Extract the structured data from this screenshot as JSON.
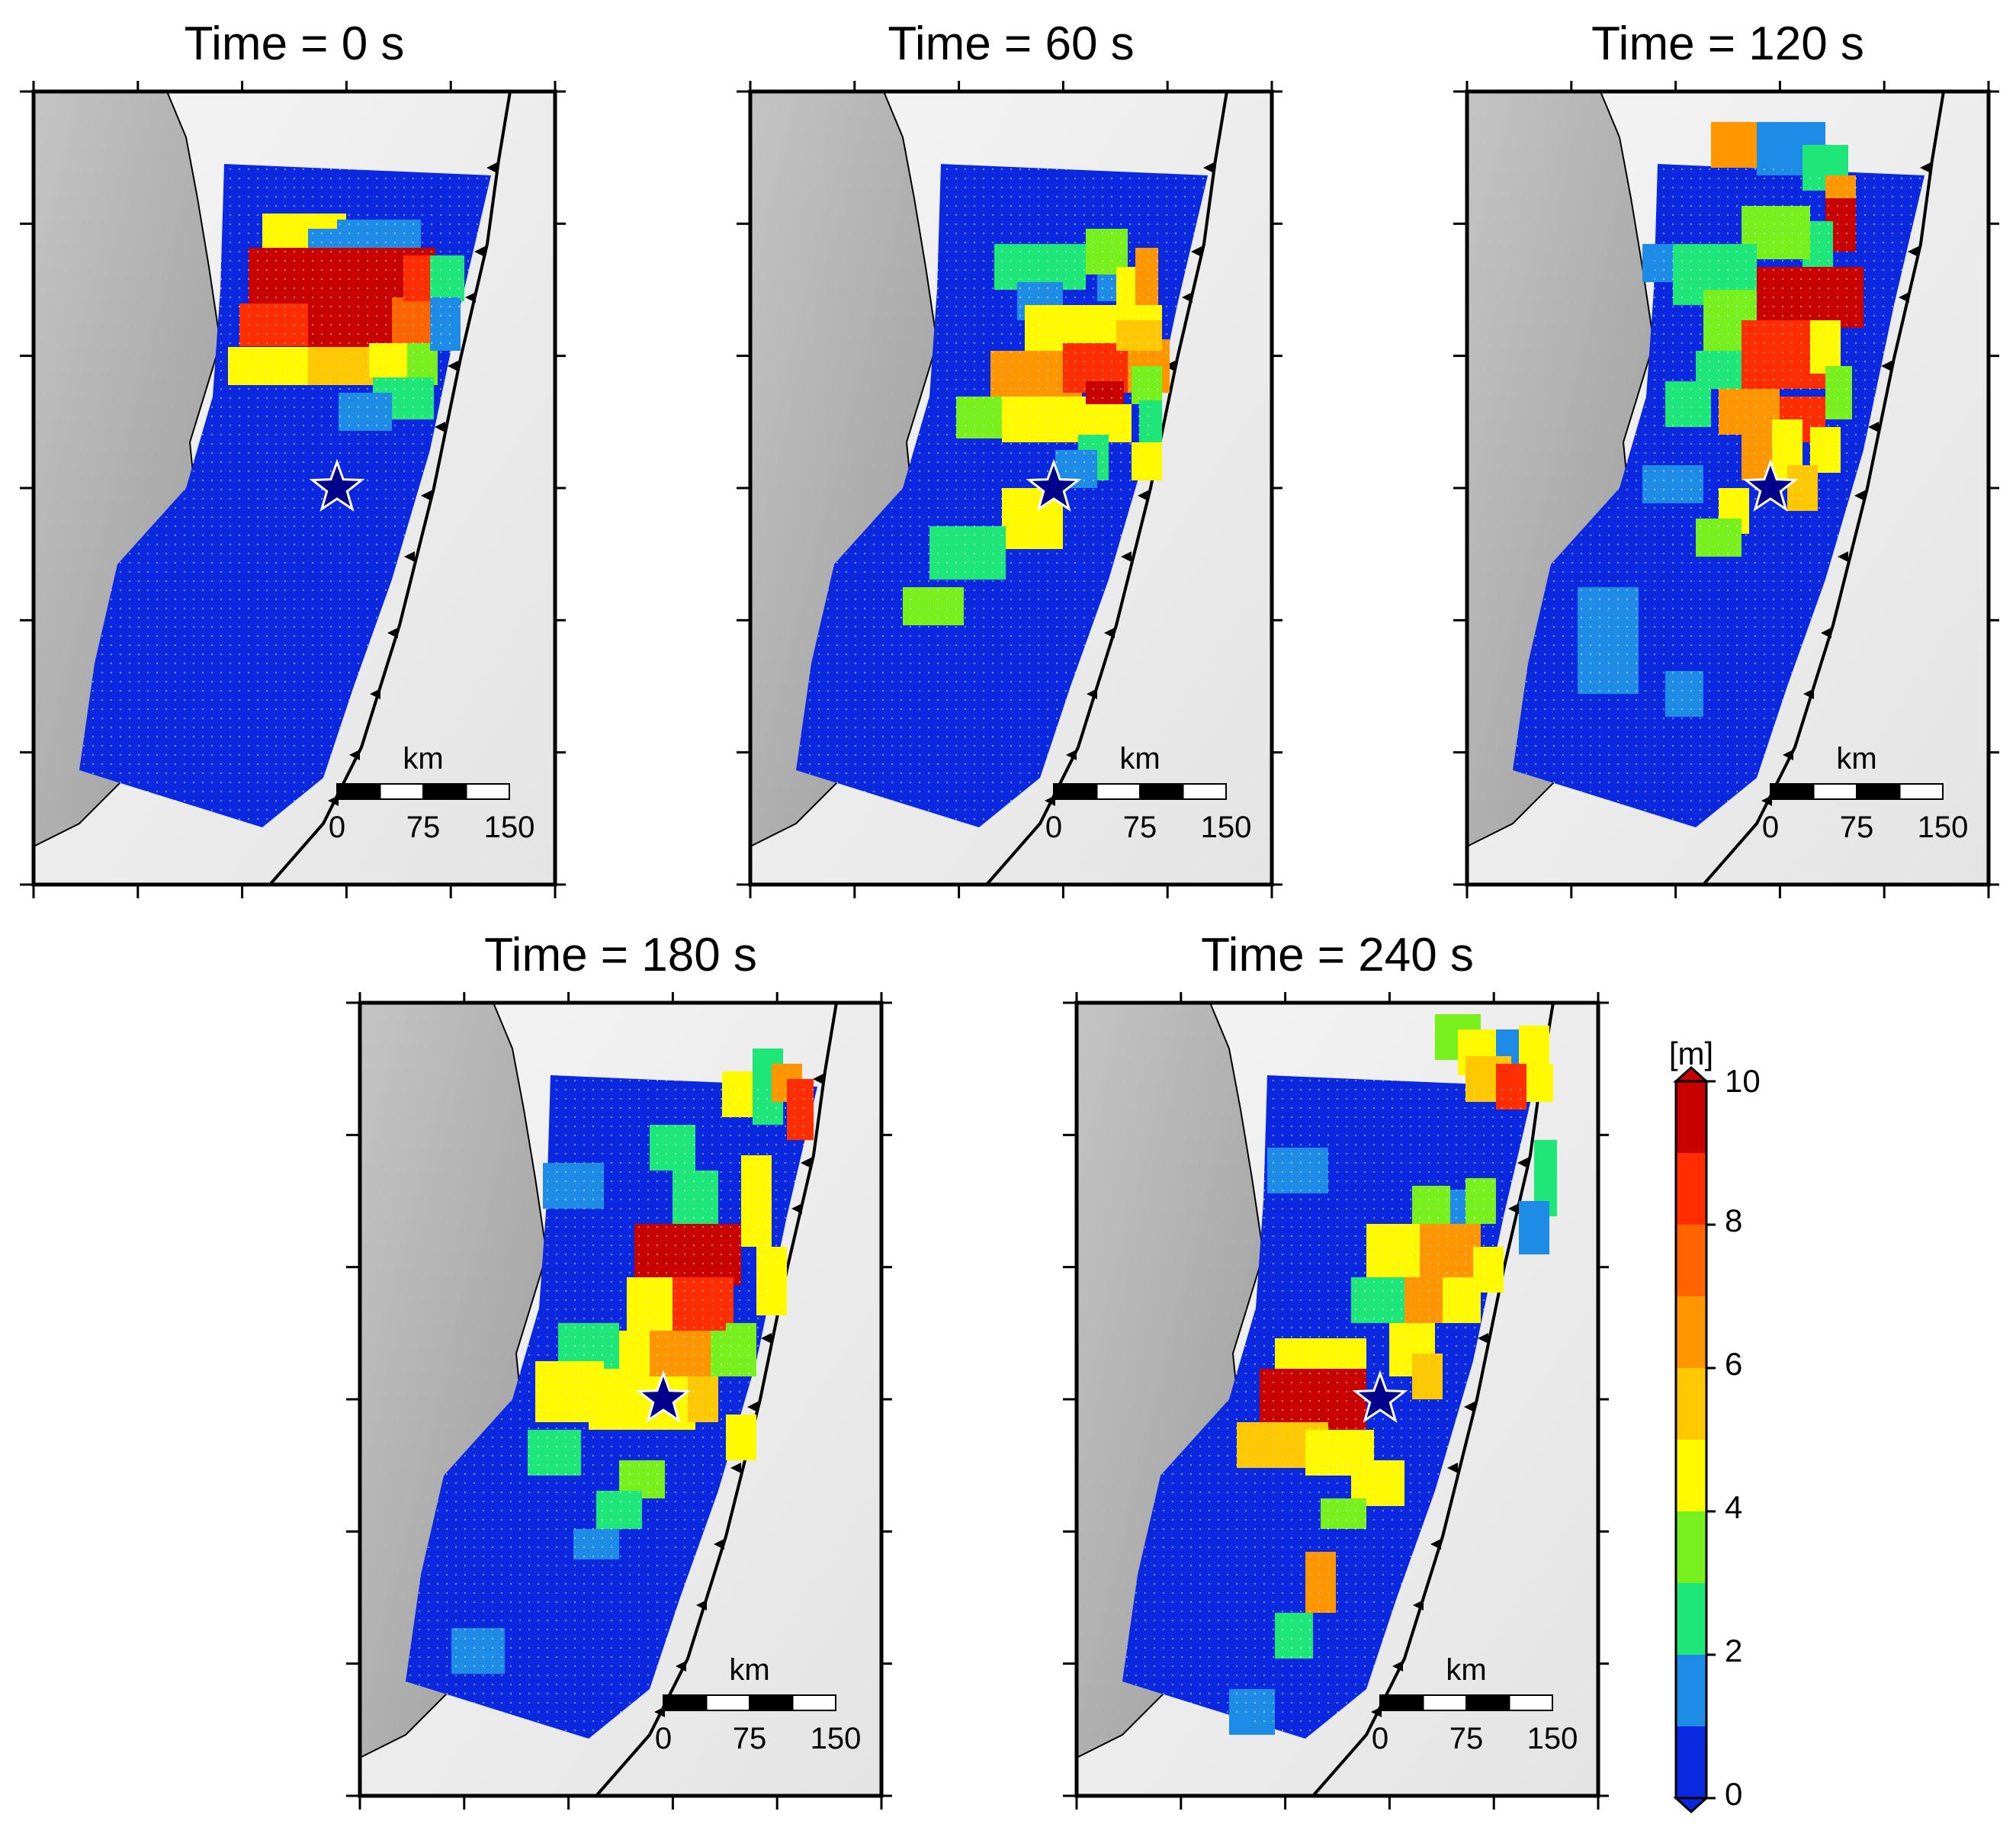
{
  "figure": {
    "panels": [
      {
        "id": "t0",
        "title": "Time = 0 s"
      },
      {
        "id": "t60",
        "title": "Time = 60 s"
      },
      {
        "id": "t120",
        "title": "Time = 120 s"
      },
      {
        "id": "t180",
        "title": "Time = 180 s"
      },
      {
        "id": "t240",
        "title": "Time = 240 s"
      }
    ],
    "scale_bar": {
      "unit": "km",
      "ticks": [
        "0",
        "75",
        "150"
      ]
    },
    "colorbar": {
      "unit": "[m]",
      "ticks": [
        "0",
        "2",
        "4",
        "6",
        "8",
        "10"
      ],
      "range": [
        0,
        10
      ],
      "colors": [
        "#0a28e0",
        "#1e8ce6",
        "#1ee678",
        "#78f01e",
        "#fffa00",
        "#ffc800",
        "#ff9600",
        "#ff6400",
        "#ff2d00",
        "#c80000"
      ]
    },
    "colors": {
      "land": "#b8b8b8",
      "sea": "#eeeeee",
      "epicenter": "#00008b"
    }
  }
}
